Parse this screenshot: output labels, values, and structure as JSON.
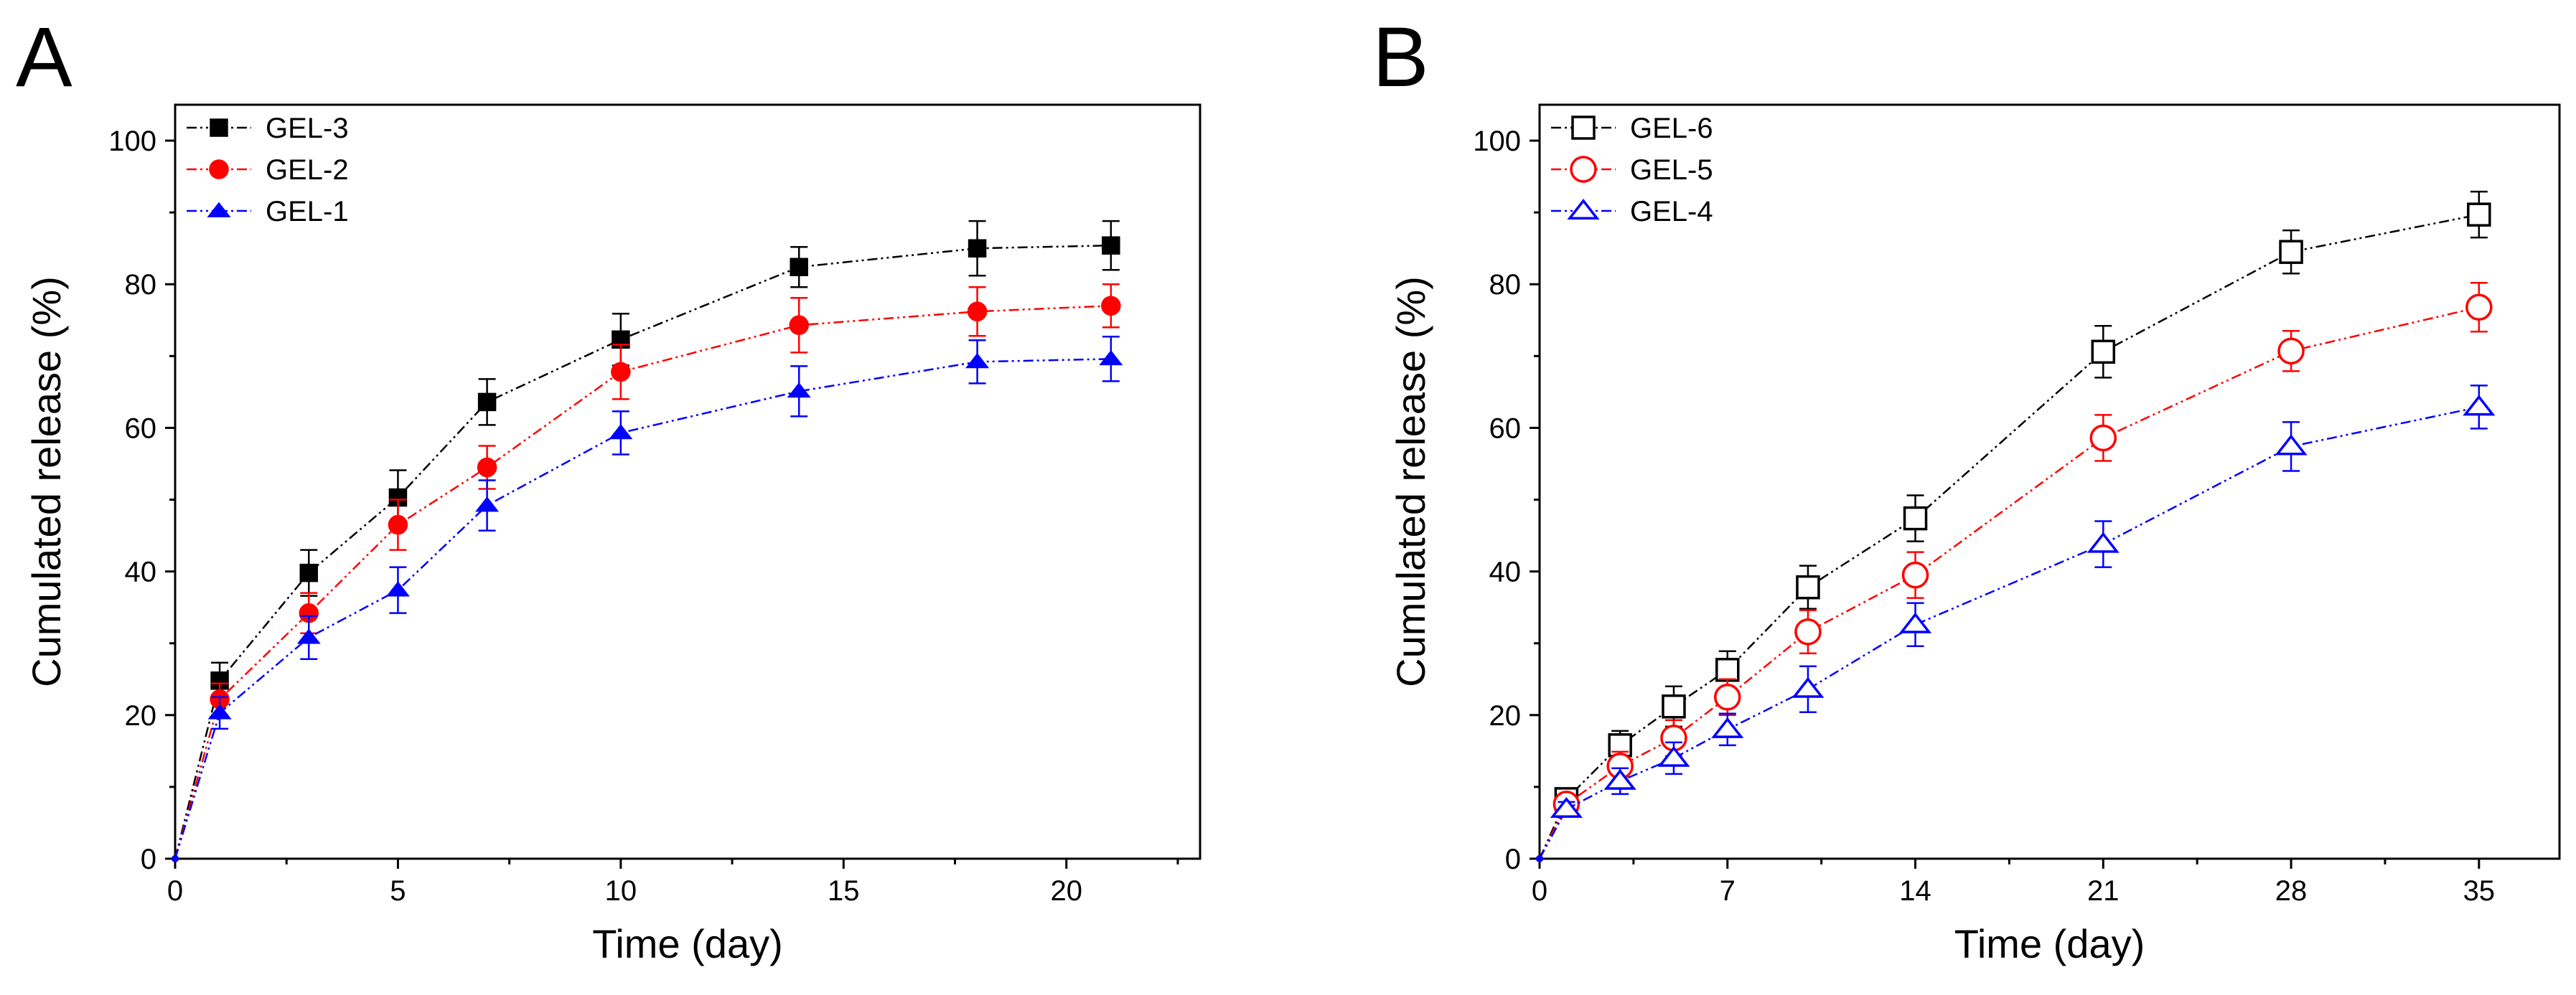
{
  "chart_data": [
    {
      "panel_label": "A",
      "type": "line",
      "title": "",
      "xlabel": "Time (day)",
      "ylabel": "Cumulated release (%)",
      "xlim": [
        0,
        23
      ],
      "ylim": [
        0,
        105
      ],
      "x_ticks": [
        0,
        5,
        10,
        15,
        20
      ],
      "y_ticks": [
        0,
        20,
        40,
        60,
        80,
        100
      ],
      "legend_position": "top-left",
      "series": [
        {
          "name": "GEL-3",
          "color": "#000000",
          "marker": "square",
          "filled": true,
          "x": [
            0,
            1,
            3,
            5,
            7,
            10,
            14,
            18,
            21
          ],
          "y": [
            0,
            24.8,
            39.8,
            50.3,
            63.6,
            72.3,
            82.4,
            85.0,
            85.4
          ],
          "err": [
            0,
            2.5,
            3.2,
            3.8,
            3.2,
            3.6,
            2.8,
            3.8,
            3.4
          ]
        },
        {
          "name": "GEL-2",
          "color": "#ff0000",
          "marker": "circle",
          "filled": true,
          "x": [
            0,
            1,
            3,
            5,
            7,
            10,
            14,
            18,
            21
          ],
          "y": [
            0,
            22.2,
            34.2,
            46.5,
            54.5,
            67.8,
            74.3,
            76.2,
            77.0
          ],
          "err": [
            0,
            2.2,
            2.8,
            3.5,
            3.0,
            3.8,
            3.8,
            3.4,
            3.0
          ]
        },
        {
          "name": "GEL-1",
          "color": "#0000ff",
          "marker": "triangle",
          "filled": true,
          "x": [
            0,
            1,
            3,
            5,
            7,
            10,
            14,
            18,
            21
          ],
          "y": [
            0,
            20.3,
            30.8,
            37.4,
            49.2,
            59.3,
            65.1,
            69.2,
            69.6
          ],
          "err": [
            0,
            2.2,
            3.0,
            3.2,
            3.5,
            3.0,
            3.5,
            3.0,
            3.1
          ]
        }
      ]
    },
    {
      "panel_label": "B",
      "type": "line",
      "title": "",
      "xlabel": "Time (day)",
      "ylabel": "Cumulated release (%)",
      "xlim": [
        0,
        38
      ],
      "ylim": [
        0,
        105
      ],
      "x_ticks": [
        0,
        7,
        14,
        21,
        28,
        35
      ],
      "y_ticks": [
        0,
        20,
        40,
        60,
        80,
        100
      ],
      "legend_position": "top-left",
      "series": [
        {
          "name": "GEL-6",
          "color": "#000000",
          "marker": "square",
          "filled": false,
          "x": [
            0,
            1,
            3,
            5,
            7,
            10,
            14,
            21,
            28,
            35
          ],
          "y": [
            0,
            8.3,
            15.8,
            21.2,
            26.3,
            37.8,
            47.4,
            70.6,
            84.5,
            89.7
          ],
          "err": [
            0,
            1.2,
            2.0,
            2.8,
            2.6,
            3.0,
            3.2,
            3.6,
            3.0,
            3.2
          ]
        },
        {
          "name": "GEL-5",
          "color": "#ff0000",
          "marker": "circle",
          "filled": false,
          "x": [
            0,
            1,
            3,
            5,
            7,
            10,
            14,
            21,
            28,
            35
          ],
          "y": [
            0,
            7.6,
            12.9,
            16.8,
            22.5,
            31.6,
            39.5,
            58.6,
            70.7,
            76.8
          ],
          "err": [
            0,
            1.2,
            2.0,
            2.5,
            2.5,
            3.0,
            3.2,
            3.2,
            2.8,
            3.4
          ]
        },
        {
          "name": "GEL-4",
          "color": "#0000ff",
          "marker": "triangle",
          "filled": false,
          "x": [
            0,
            1,
            3,
            5,
            7,
            10,
            14,
            21,
            28,
            35
          ],
          "y": [
            0,
            6.9,
            10.8,
            14.0,
            18.0,
            23.6,
            32.6,
            43.8,
            57.4,
            62.9
          ],
          "err": [
            0,
            1.0,
            1.8,
            2.2,
            2.2,
            3.2,
            3.0,
            3.2,
            3.4,
            3.0
          ]
        }
      ]
    }
  ]
}
